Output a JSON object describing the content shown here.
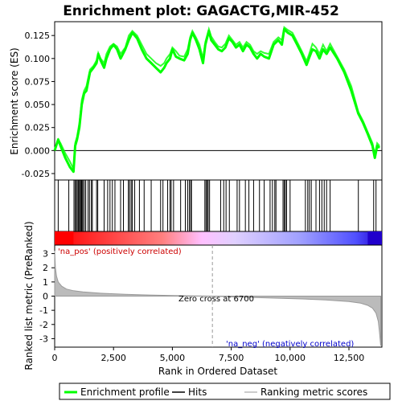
{
  "chart_data": {
    "type": "line",
    "title": "Enrichment plot: GAGACTG,MIR-452",
    "top_panel": {
      "ylabel": "Enrichment score (ES)",
      "ylim": [
        -0.032,
        0.14
      ],
      "yticks": [
        -0.025,
        0.0,
        0.025,
        0.05,
        0.075,
        0.1,
        0.125
      ],
      "ytick_labels": [
        "-0.025",
        "0.000",
        "0.025",
        "0.050",
        "0.075",
        "0.100",
        "0.125"
      ],
      "series": [
        {
          "name": "Enrichment profile",
          "color": "#00ff00",
          "x": [
            0,
            150,
            250,
            450,
            650,
            800,
            870,
            950,
            1050,
            1150,
            1250,
            1350,
            1500,
            1650,
            1780,
            1850,
            1950,
            2100,
            2200,
            2350,
            2500,
            2650,
            2800,
            3000,
            3150,
            3300,
            3500,
            3700,
            3900,
            4100,
            4300,
            4500,
            4650,
            4750,
            4900,
            5000,
            5150,
            5300,
            5500,
            5650,
            5750,
            5850,
            6000,
            6150,
            6300,
            6400,
            6550,
            6650,
            6800,
            6950,
            7100,
            7250,
            7400,
            7550,
            7700,
            7850,
            8000,
            8150,
            8300,
            8450,
            8600,
            8750,
            8900,
            9100,
            9300,
            9500,
            9650,
            9750,
            9900,
            10100,
            10300,
            10500,
            10700,
            10800,
            10950,
            11100,
            11250,
            11400,
            11550,
            11700,
            12000,
            12300,
            12600,
            12900,
            13100,
            13300,
            13500,
            13600,
            13700,
            13800
          ],
          "y": [
            0.0,
            0.012,
            0.005,
            -0.008,
            -0.018,
            -0.023,
            0.005,
            0.012,
            0.025,
            0.05,
            0.062,
            0.065,
            0.085,
            0.09,
            0.095,
            0.105,
            0.098,
            0.09,
            0.1,
            0.11,
            0.115,
            0.11,
            0.1,
            0.11,
            0.12,
            0.128,
            0.122,
            0.11,
            0.1,
            0.095,
            0.09,
            0.085,
            0.09,
            0.095,
            0.1,
            0.11,
            0.102,
            0.1,
            0.098,
            0.105,
            0.12,
            0.128,
            0.12,
            0.11,
            0.095,
            0.115,
            0.13,
            0.12,
            0.115,
            0.11,
            0.108,
            0.112,
            0.122,
            0.118,
            0.112,
            0.115,
            0.108,
            0.115,
            0.112,
            0.105,
            0.1,
            0.105,
            0.102,
            0.1,
            0.115,
            0.12,
            0.115,
            0.132,
            0.128,
            0.125,
            0.115,
            0.105,
            0.093,
            0.1,
            0.11,
            0.108,
            0.1,
            0.11,
            0.105,
            0.112,
            0.1,
            0.085,
            0.065,
            0.04,
            0.03,
            0.018,
            0.005,
            -0.008,
            0.005,
            0.003
          ],
          "fill_ribbon_upper": [
            0.0,
            0.012,
            0.008,
            -0.003,
            -0.012,
            -0.02,
            0.008,
            0.015,
            0.03,
            0.055,
            0.065,
            0.07,
            0.088,
            0.092,
            0.098,
            0.106,
            0.1,
            0.095,
            0.105,
            0.113,
            0.116,
            0.113,
            0.105,
            0.112,
            0.125,
            0.13,
            0.125,
            0.115,
            0.105,
            0.1,
            0.095,
            0.092,
            0.095,
            0.1,
            0.105,
            0.112,
            0.108,
            0.103,
            0.102,
            0.11,
            0.123,
            0.13,
            0.123,
            0.115,
            0.1,
            0.118,
            0.132,
            0.124,
            0.118,
            0.113,
            0.112,
            0.116,
            0.125,
            0.12,
            0.115,
            0.118,
            0.112,
            0.118,
            0.115,
            0.108,
            0.105,
            0.108,
            0.106,
            0.105,
            0.118,
            0.123,
            0.12,
            0.134,
            0.131,
            0.128,
            0.118,
            0.108,
            0.097,
            0.104,
            0.116,
            0.112,
            0.105,
            0.115,
            0.108,
            0.116,
            0.102,
            0.088,
            0.07,
            0.042,
            0.032,
            0.02,
            0.008,
            -0.004,
            0.008,
            0.005
          ]
        }
      ],
      "zero_line": 0.0
    },
    "hits_panel": {
      "name": "Hits",
      "hit_positions": [
        150,
        600,
        820,
        870,
        920,
        960,
        1010,
        1050,
        1090,
        1130,
        1160,
        1200,
        1260,
        1320,
        1420,
        1480,
        1560,
        1600,
        1780,
        1830,
        2100,
        2250,
        2350,
        2450,
        2560,
        2800,
        2920,
        3130,
        3180,
        3250,
        3300,
        3400,
        3600,
        3800,
        4100,
        4500,
        4600,
        4800,
        4900,
        4950,
        5050,
        5350,
        5550,
        5650,
        5720,
        5780,
        5810,
        6380,
        6430,
        6480,
        6520,
        6580,
        7050,
        7180,
        7280,
        7420,
        7750,
        7850,
        8100,
        8250,
        8450,
        8700,
        8900,
        9150,
        9250,
        9350,
        9400,
        9700,
        9750,
        9800,
        9850,
        10000,
        10650,
        10750,
        10820,
        10900,
        11100,
        11250,
        11350,
        11450,
        11550,
        11700,
        12900,
        13550,
        13650
      ]
    },
    "rank_panel": {
      "ylabel": "Ranked list metric (PreRanked)",
      "xlabel": "Rank in Ordered Dataset",
      "ylim": [
        -3.6,
        3.6
      ],
      "yticks": [
        -3,
        -2,
        -1,
        0,
        1,
        2,
        3
      ],
      "ytick_labels": [
        "-3",
        "-2",
        "-1",
        "0",
        "1",
        "2",
        "3"
      ],
      "xlim": [
        0,
        13900
      ],
      "xticks": [
        0,
        2500,
        5000,
        7500,
        10000,
        12500
      ],
      "xtick_labels": [
        "0",
        "2,500",
        "5,000",
        "7,500",
        "10,000",
        "12,500"
      ],
      "curve_x": [
        0,
        30,
        80,
        150,
        300,
        500,
        800,
        1200,
        2000,
        3000,
        4000,
        5000,
        6000,
        6700,
        7500,
        8500,
        9500,
        10500,
        11500,
        12500,
        13000,
        13300,
        13500,
        13650,
        13750,
        13800,
        13850
      ],
      "curve_y": [
        3.2,
        2.0,
        1.4,
        1.0,
        0.7,
        0.5,
        0.38,
        0.3,
        0.2,
        0.13,
        0.08,
        0.04,
        0.01,
        0.0,
        -0.05,
        -0.1,
        -0.15,
        -0.2,
        -0.27,
        -0.38,
        -0.5,
        -0.65,
        -0.85,
        -1.2,
        -1.8,
        -2.6,
        -3.5
      ],
      "zero_cross_label": "Zero cross at 6700",
      "zero_cross_x": 6700,
      "pos_label": "'na_pos' (positively correlated)",
      "neg_label": "'na_neg' (negatively correlated)",
      "pos_color": "#cc0000",
      "neg_color": "#0000cc"
    },
    "legend": {
      "placement": "bottom",
      "items": [
        {
          "label": "Enrichment profile",
          "color": "#00ff00",
          "kind": "line"
        },
        {
          "label": "Hits",
          "color": "#000000",
          "kind": "line"
        },
        {
          "label": "Ranking metric scores",
          "color": "#bbbbbb",
          "kind": "line"
        }
      ]
    }
  }
}
